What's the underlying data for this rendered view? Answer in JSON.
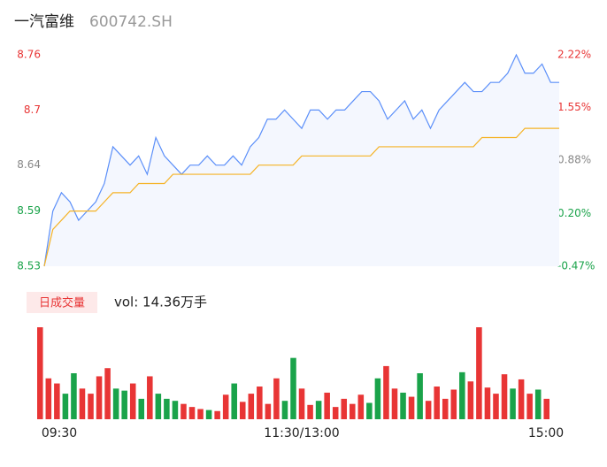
{
  "header": {
    "name": "一汽富维",
    "code": "600742.SH"
  },
  "chart_data": [
    {
      "type": "line",
      "xlim": [
        0,
        60
      ],
      "xticks": [
        {
          "value": 0,
          "label": "09:30"
        },
        {
          "value": 30,
          "label": "11:30/13:00"
        },
        {
          "value": 60,
          "label": "15:00"
        }
      ],
      "ylim": [
        8.53,
        8.76
      ],
      "yticks": [
        8.53,
        8.59,
        8.64,
        8.7,
        8.76
      ],
      "ytick_colors": [
        "#1aa34a",
        "#1aa34a",
        "#888888",
        "#e83535",
        "#e83535"
      ],
      "y2lim": [
        -0.47,
        2.22
      ],
      "y2ticks": [
        {
          "value": -0.47,
          "label": "-0.47%"
        },
        {
          "value": 0.2,
          "label": "0.20%"
        },
        {
          "value": 0.88,
          "label": "0.88%"
        },
        {
          "value": 1.55,
          "label": "1.55%"
        },
        {
          "value": 2.22,
          "label": "2.22%"
        }
      ],
      "series": [
        {
          "color": "#5b8ff9",
          "values": [
            8.53,
            8.59,
            8.61,
            8.6,
            8.58,
            8.59,
            8.6,
            8.62,
            8.66,
            8.65,
            8.64,
            8.65,
            8.63,
            8.67,
            8.65,
            8.64,
            8.63,
            8.64,
            8.64,
            8.65,
            8.64,
            8.64,
            8.65,
            8.64,
            8.66,
            8.67,
            8.69,
            8.69,
            8.7,
            8.69,
            8.68,
            8.7,
            8.7,
            8.69,
            8.7,
            8.7,
            8.71,
            8.72,
            8.72,
            8.71,
            8.69,
            8.7,
            8.71,
            8.69,
            8.7,
            8.68,
            8.7,
            8.71,
            8.72,
            8.73,
            8.72,
            8.72,
            8.73,
            8.73,
            8.74,
            8.76,
            8.74,
            8.74,
            8.75,
            8.73,
            8.73
          ]
        },
        {
          "color": "#f5b326",
          "values": [
            8.53,
            8.57,
            8.58,
            8.59,
            8.59,
            8.59,
            8.59,
            8.6,
            8.61,
            8.61,
            8.61,
            8.62,
            8.62,
            8.62,
            8.62,
            8.63,
            8.63,
            8.63,
            8.63,
            8.63,
            8.63,
            8.63,
            8.63,
            8.63,
            8.63,
            8.64,
            8.64,
            8.64,
            8.64,
            8.64,
            8.65,
            8.65,
            8.65,
            8.65,
            8.65,
            8.65,
            8.65,
            8.65,
            8.65,
            8.66,
            8.66,
            8.66,
            8.66,
            8.66,
            8.66,
            8.66,
            8.66,
            8.66,
            8.66,
            8.66,
            8.66,
            8.67,
            8.67,
            8.67,
            8.67,
            8.67,
            8.68,
            8.68,
            8.68,
            8.68,
            8.68
          ]
        }
      ]
    },
    {
      "type": "bar",
      "legend": "日成交量",
      "label": "vol: 14.36万手",
      "ylim": [
        0,
        9000
      ],
      "up_color": "#e83535",
      "down_color": "#1aa34a",
      "values": [
        9000,
        4000,
        3500,
        2500,
        4500,
        3000,
        2500,
        4200,
        5000,
        3000,
        2800,
        3500,
        2000,
        4200,
        2500,
        2000,
        1800,
        1500,
        1200,
        1000,
        900,
        800,
        2400,
        3500,
        1700,
        2500,
        3200,
        1500,
        4000,
        1800,
        6000,
        3000,
        1400,
        1800,
        2600,
        1200,
        2000,
        1500,
        2400,
        1600,
        4000,
        5200,
        3000,
        2600,
        2200,
        4500,
        1800,
        3200,
        2000,
        2900,
        4600,
        3700,
        9000,
        3100,
        2500,
        4400,
        3000,
        3900,
        2500,
        2900,
        2000
      ]
    }
  ]
}
